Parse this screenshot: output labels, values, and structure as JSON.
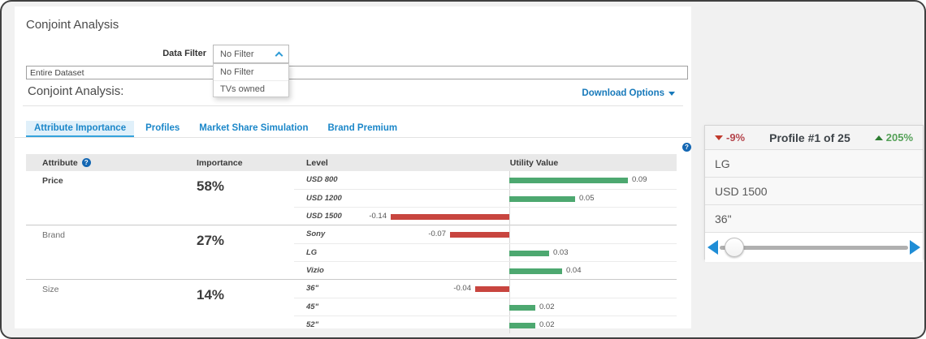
{
  "page": {
    "title": "Conjoint Analysis"
  },
  "filter": {
    "label": "Data Filter",
    "selected": "No Filter",
    "options": [
      "No Filter",
      "TVs owned"
    ]
  },
  "dataset": {
    "value": "Entire Dataset"
  },
  "section": {
    "title": "Conjoint Analysis:",
    "download_label": "Download Options"
  },
  "tabs": [
    {
      "label": "Attribute Importance",
      "active": true
    },
    {
      "label": "Profiles",
      "active": false
    },
    {
      "label": "Market Share Simulation",
      "active": false
    },
    {
      "label": "Brand Premium",
      "active": false
    }
  ],
  "table": {
    "headers": {
      "attribute": "Attribute",
      "importance": "Importance",
      "level": "Level",
      "utility": "Utility Value"
    },
    "help_glyph": "?"
  },
  "chart_data": {
    "type": "bar",
    "title": "Utility Value by Level",
    "orientation": "horizontal",
    "xlabel": "Utility Value",
    "xlim": [
      -0.14,
      0.09
    ],
    "normalization": "per-sign",
    "positive_color": "#4da870",
    "negative_color": "#c8453f",
    "groups": [
      {
        "attribute": "Price",
        "importance": "58%",
        "levels": [
          "USD 800",
          "USD 1200",
          "USD 1500"
        ],
        "values": [
          0.09,
          0.05,
          -0.14
        ]
      },
      {
        "attribute": "Brand",
        "importance": "27%",
        "levels": [
          "Sony",
          "LG",
          "Vizio"
        ],
        "values": [
          -0.07,
          0.03,
          0.04
        ]
      },
      {
        "attribute": "Size",
        "importance": "14%",
        "levels": [
          "36\"",
          "45\"",
          "52\""
        ],
        "values": [
          -0.04,
          0.02,
          0.02
        ]
      }
    ]
  },
  "profile": {
    "decrease": "-9%",
    "title": "Profile #1 of 25",
    "increase": "205%",
    "rows": [
      "LG",
      "USD 1500",
      "36\""
    ],
    "slider_position_pct": 3
  },
  "colors": {
    "accent_blue": "#1b87c9",
    "link_blue": "#1779ba",
    "slider_blue": "#1f8dd6",
    "profile_red": "#b5464d",
    "profile_green": "#55a158"
  }
}
